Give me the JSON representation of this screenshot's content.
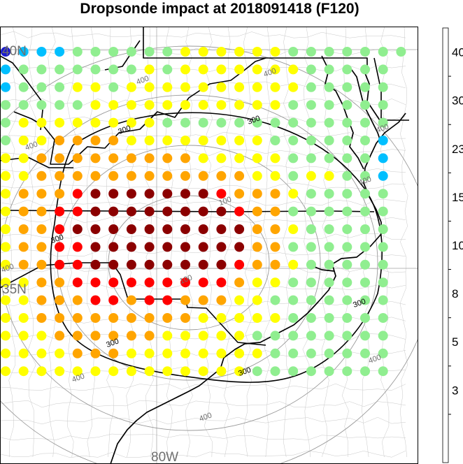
{
  "title": "Dropsonde impact at 2018091418 (F120)",
  "map_labels": {
    "lat_40": "40N",
    "lat_35": "35N",
    "lon_80": "80W"
  },
  "contour_labels": [
    "300",
    "300",
    "300",
    "300",
    "300",
    "300",
    "400",
    "400",
    "400",
    "400",
    "400",
    "400",
    "400",
    "400",
    "400",
    "100",
    "100"
  ],
  "colorbar": {
    "tick_labels": [
      "40",
      "30",
      "23",
      "15",
      "10",
      "8",
      "5",
      "3"
    ],
    "colors": [
      "#5a2d91",
      "#9b30e0",
      "#1a1ad0",
      "#00bfff",
      "#90ee90",
      "#ffff00",
      "#ffa500",
      "#ff0000",
      "#8b0000"
    ]
  },
  "chart_data": {
    "type": "scatter",
    "title": "Dropsonde impact at 2018091418 (F120)",
    "grid_lon": [
      -84.0,
      -83.5,
      -83.0,
      -82.5,
      -82.0,
      -81.5,
      -81.0,
      -80.5,
      -80.0,
      -79.5,
      -79.0,
      -78.5,
      -78.0,
      -77.5,
      -77.0,
      -76.5,
      -76.0,
      -75.5,
      -75.0,
      -74.5,
      -74.0,
      -73.5,
      -73.0
    ],
    "grid_lat": [
      40.0,
      39.5,
      39.0,
      38.5,
      38.0,
      37.5,
      37.0,
      36.5,
      36.0,
      35.5,
      35.0,
      34.5,
      34.0,
      33.5,
      33.0,
      32.5,
      32.0,
      31.5,
      31.0
    ],
    "impact_class_legend": "0:<3 1:3-5 2:5-8 3:8-10 4:10-15 5:15-23 6:23-30 7:30-40 8:>40 (.:no dot)",
    "impact_classes_by_row": [
      "23334444445555554444444",
      "3444444454555555544444.",
      "3444554555555555544444.",
      "4444455555555555444444.",
      "4555555554444444444444.",
      "4556666555555554444443.",
      "5566666666655555444443.",
      "5566666666666655455443.",
      "5666788888887666544444.",
      "5667788888888766444444.",
      "5667888888888866544444.",
      "5667788888888866444444.",
      "5667788888888766544444.",
      "5566777777777655444444.",
      "5566677677666554444444.",
      "5566666666655555444444.",
      "5556666665555544444444.",
      "5555666555555554444444.",
      "5555555555555544444444."
    ],
    "contour_levels": [
      100,
      300,
      400
    ]
  }
}
